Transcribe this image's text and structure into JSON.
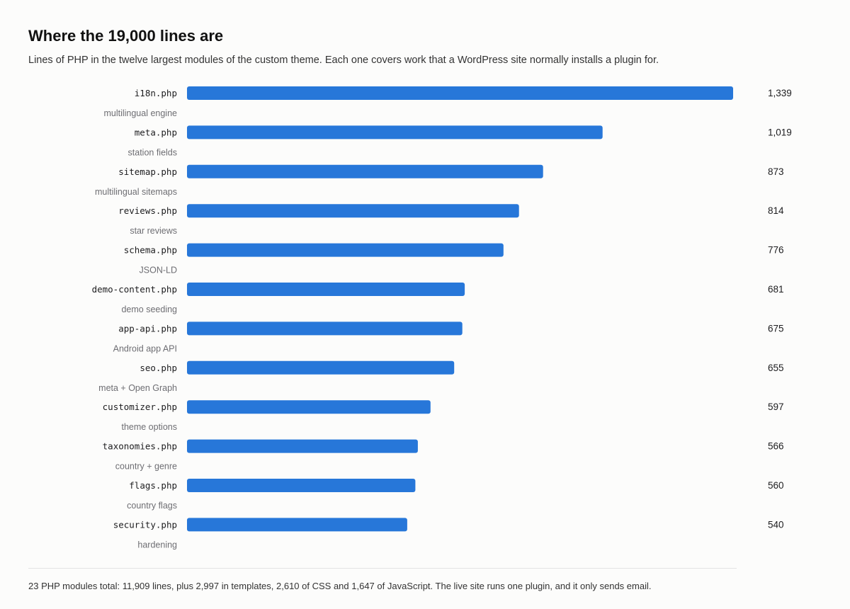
{
  "header": {
    "title": "Where the 19,000 lines are",
    "subtitle": "Lines of PHP in the twelve largest modules of the custom theme. Each one covers work that a WordPress site normally installs a plugin for."
  },
  "footnote": "23 PHP modules total: 11,909 lines, plus 2,997 in templates, 2,610 of CSS and 1,647 of JavaScript. The live site runs one plugin, and it only sends email.",
  "colors": {
    "bar": "#2777d9",
    "background": "#fcfcfb"
  },
  "chart_data": {
    "type": "bar",
    "orientation": "horizontal",
    "title": "Where the 19,000 lines are",
    "xlabel": "",
    "ylabel": "",
    "grid": false,
    "value_labels": [
      "1,339",
      "1,019",
      "873",
      "814",
      "776",
      "681",
      "675",
      "655",
      "597",
      "566",
      "560",
      "540"
    ],
    "xlim": [
      0,
      1339
    ],
    "categories": [
      "i18n.php",
      "meta.php",
      "sitemap.php",
      "reviews.php",
      "schema.php",
      "demo-content.php",
      "app-api.php",
      "seo.php",
      "customizer.php",
      "taxonomies.php",
      "flags.php",
      "security.php"
    ],
    "descriptions": [
      "multilingual engine",
      "station fields",
      "multilingual sitemaps",
      "star reviews",
      "JSON-LD",
      "demo seeding",
      "Android app API",
      "meta + Open Graph",
      "theme options",
      "country + genre",
      "country flags",
      "hardening"
    ],
    "values": [
      1339,
      1019,
      873,
      814,
      776,
      681,
      675,
      655,
      597,
      566,
      560,
      540
    ]
  }
}
